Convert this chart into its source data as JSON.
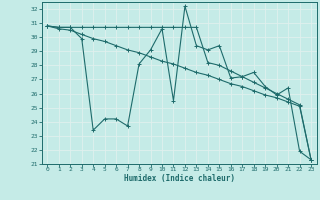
{
  "xlabel": "Humidex (Indice chaleur)",
  "xlim": [
    -0.5,
    23.5
  ],
  "ylim": [
    21,
    32.5
  ],
  "yticks": [
    21,
    22,
    23,
    24,
    25,
    26,
    27,
    28,
    29,
    30,
    31,
    32
  ],
  "xticks": [
    0,
    1,
    2,
    3,
    4,
    5,
    6,
    7,
    8,
    9,
    10,
    11,
    12,
    13,
    14,
    15,
    16,
    17,
    18,
    19,
    20,
    21,
    22,
    23
  ],
  "bg_color": "#c5ebe7",
  "grid_color": "#e0f0ee",
  "line_color": "#1e6b6b",
  "lines": [
    [
      30.8,
      30.7,
      30.7,
      29.9,
      23.4,
      24.2,
      24.2,
      23.7,
      28.1,
      29.1,
      30.6,
      25.5,
      32.2,
      29.4,
      29.1,
      29.4,
      27.1,
      27.2,
      27.5,
      26.5,
      25.9,
      26.4,
      21.9,
      21.3
    ],
    [
      30.8,
      30.7,
      30.7,
      30.7,
      30.7,
      30.7,
      30.7,
      30.7,
      30.7,
      30.7,
      30.7,
      30.7,
      30.7,
      30.7,
      28.2,
      28.0,
      27.6,
      27.2,
      26.8,
      26.4,
      26.0,
      25.6,
      25.2,
      21.3
    ],
    [
      30.8,
      30.6,
      30.5,
      30.2,
      29.9,
      29.7,
      29.4,
      29.1,
      28.9,
      28.6,
      28.3,
      28.1,
      27.8,
      27.5,
      27.3,
      27.0,
      26.7,
      26.5,
      26.2,
      25.9,
      25.7,
      25.4,
      25.1,
      21.3
    ]
  ]
}
